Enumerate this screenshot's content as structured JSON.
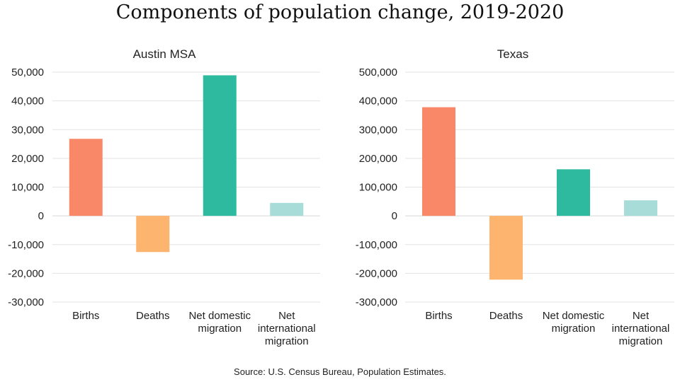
{
  "title": "Components of population change, 2019-2020",
  "source": "Source: U.S. Census Bureau, Population Estimates.",
  "colors": [
    "#f98869",
    "#fdb46e",
    "#2dba9f",
    "#a8dcd9"
  ],
  "chart_data": [
    {
      "type": "bar",
      "title": "Austin MSA",
      "categories": [
        [
          "Births"
        ],
        [
          "Deaths"
        ],
        [
          "Net domestic",
          "migration"
        ],
        [
          "Net",
          "international",
          "migration"
        ]
      ],
      "values": [
        26800,
        -12600,
        48900,
        4500
      ],
      "ylim": [
        -30000,
        50000
      ],
      "yticks": [
        50000,
        40000,
        30000,
        20000,
        10000,
        0,
        -10000,
        -20000,
        -30000
      ],
      "ytick_labels": [
        "50,000",
        "40,000",
        "30,000",
        "20,000",
        "10,000",
        "0",
        "-10,000",
        "-20,000",
        "-30,000"
      ],
      "grid": true,
      "legend": "none"
    },
    {
      "type": "bar",
      "title": "Texas",
      "categories": [
        [
          "Births"
        ],
        [
          "Deaths"
        ],
        [
          "Net domestic",
          "migration"
        ],
        [
          "Net",
          "international",
          "migration"
        ]
      ],
      "values": [
        378000,
        -222000,
        162000,
        54000
      ],
      "ylim": [
        -300000,
        500000
      ],
      "yticks": [
        500000,
        400000,
        300000,
        200000,
        100000,
        0,
        -100000,
        -200000,
        -300000
      ],
      "ytick_labels": [
        "500,000",
        "400,000",
        "300,000",
        "200,000",
        "100,000",
        "0",
        "-100,000",
        "-200,000",
        "-300,000"
      ],
      "grid": true,
      "legend": "none"
    }
  ]
}
